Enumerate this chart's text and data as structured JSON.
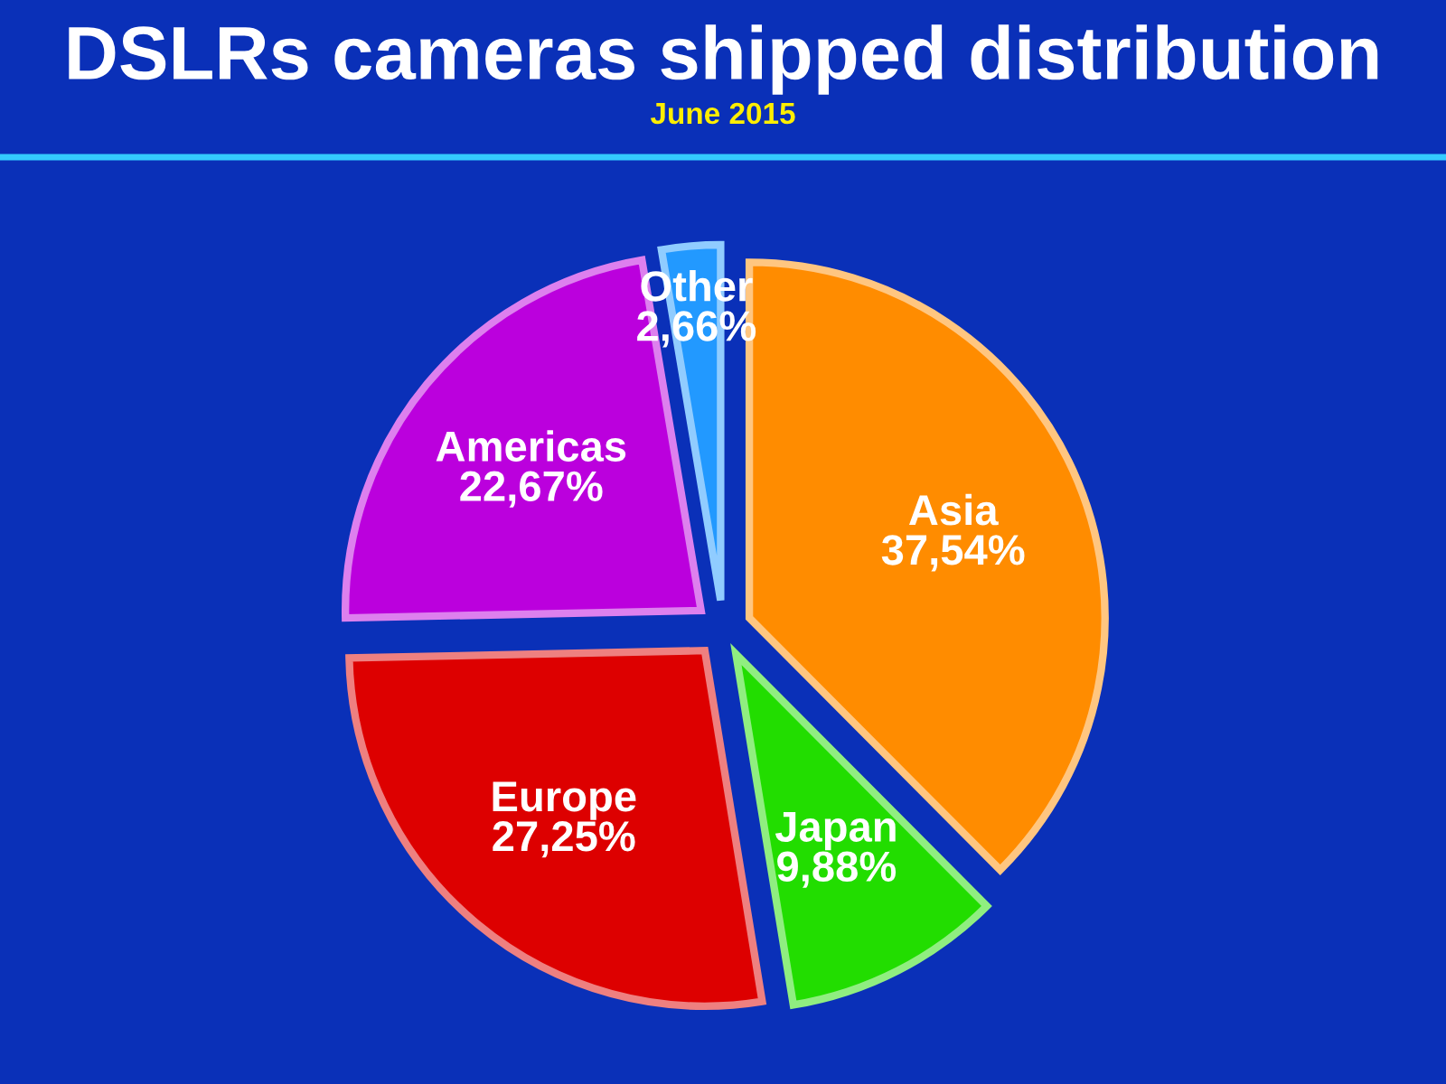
{
  "chart_data": {
    "type": "pie",
    "title": "DSLRs cameras shipped distribution",
    "subtitle": "June 2015",
    "categories": [
      "Asia",
      "Japan",
      "Europe",
      "Americas",
      "Other"
    ],
    "values": [
      37.54,
      9.88,
      27.25,
      22.67,
      2.66
    ],
    "value_labels": [
      "37,54%",
      "9,88%",
      "27,25%",
      "22,67%",
      "2,66%"
    ],
    "colors": [
      "#ff8c00",
      "#22dd00",
      "#dd0000",
      "#bb00dd",
      "#2299ff"
    ]
  }
}
